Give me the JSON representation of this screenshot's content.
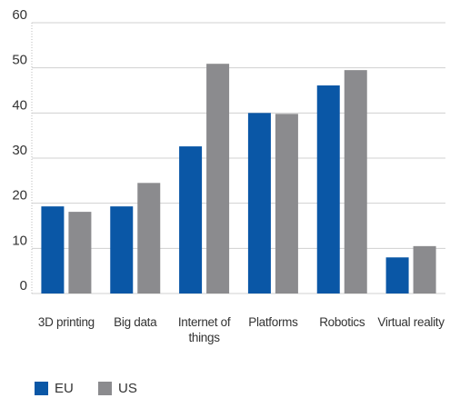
{
  "chart_data": {
    "type": "bar",
    "categories": [
      "3D printing",
      "Big data",
      "Internet of things",
      "Platforms",
      "Robotics",
      "Virtual reality"
    ],
    "series": [
      {
        "name": "EU",
        "color": "#0a57a6",
        "values": [
          19.3,
          19.3,
          32.6,
          40,
          46.1,
          8
        ]
      },
      {
        "name": "US",
        "color": "#8b8b8e",
        "values": [
          18.1,
          24.5,
          50.9,
          39.8,
          49.5,
          10.5
        ]
      }
    ],
    "ylim": [
      0,
      60
    ],
    "yticks": [
      0,
      10,
      20,
      30,
      40,
      50,
      60
    ],
    "grid": true,
    "legend": "bottom-left"
  }
}
